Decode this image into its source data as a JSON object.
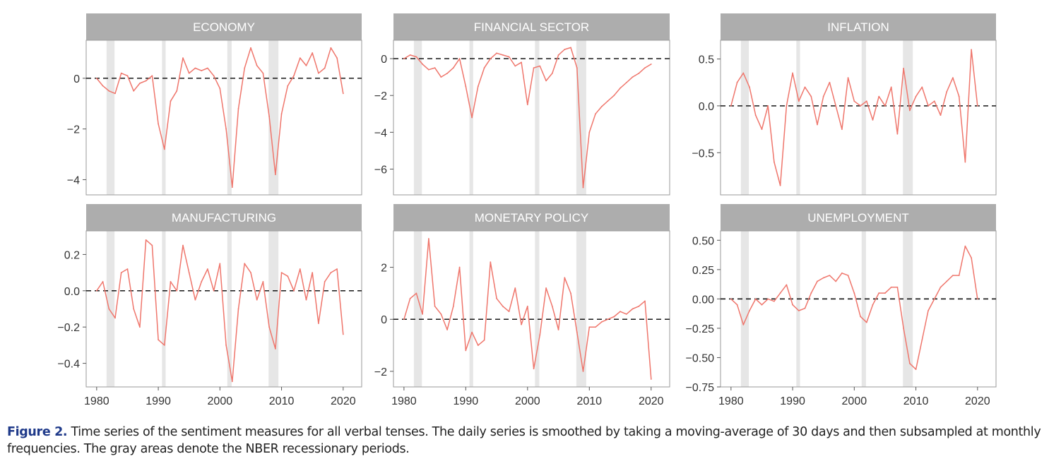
{
  "caption": {
    "label": "Figure 2.",
    "text": "Time series of the sentiment measures for all verbal tenses. The daily series is smoothed by taking a moving-average of 30 days and then subsampled at monthly frequencies. The gray areas denote the NBER recessionary periods."
  },
  "colors": {
    "line": "#ef766c",
    "strip": "#adadad",
    "recession": "#e6e6e6",
    "zero_line": "#000000"
  },
  "x_tick_labels": [
    "1980",
    "1990",
    "2000",
    "2010",
    "2020"
  ],
  "recessions": [
    [
      1981.6,
      1982.9
    ],
    [
      1990.6,
      1991.2
    ],
    [
      2001.2,
      2001.9
    ],
    [
      2007.9,
      2009.5
    ]
  ],
  "chart_data": [
    {
      "type": "line",
      "title": "ECONOMY",
      "xlim": [
        1978.3,
        2023.0
      ],
      "ylim": [
        -4.6,
        1.5
      ],
      "yticks": [
        0,
        -2,
        -4
      ],
      "ytick_labels": [
        "0",
        "−2",
        "−4"
      ],
      "x": [
        1980,
        1981,
        1982,
        1983,
        1984,
        1985,
        1986,
        1987,
        1988,
        1989,
        1990,
        1991,
        1992,
        1993,
        1994,
        1995,
        1996,
        1997,
        1998,
        1999,
        2000,
        2001,
        2002,
        2003,
        2004,
        2005,
        2006,
        2007,
        2008,
        2009,
        2010,
        2011,
        2012,
        2013,
        2014,
        2015,
        2016,
        2017,
        2018,
        2019,
        2020
      ],
      "values": [
        0.0,
        -0.3,
        -0.5,
        -0.6,
        0.2,
        0.1,
        -0.5,
        -0.2,
        -0.1,
        0.1,
        -1.8,
        -2.8,
        -0.9,
        -0.5,
        0.8,
        0.2,
        0.4,
        0.3,
        0.4,
        0.1,
        -0.4,
        -2.0,
        -4.3,
        -1.2,
        0.4,
        1.2,
        0.5,
        0.2,
        -1.5,
        -3.8,
        -1.4,
        -0.3,
        0.1,
        0.8,
        0.5,
        1.0,
        0.2,
        0.4,
        1.2,
        0.8,
        -0.6
      ]
    },
    {
      "type": "line",
      "title": "FINANCIAL SECTOR",
      "xlim": [
        1978.3,
        2023.0
      ],
      "ylim": [
        -7.4,
        1.0
      ],
      "yticks": [
        0,
        -2,
        -4,
        -6
      ],
      "ytick_labels": [
        "0",
        "−2",
        "−4",
        "−6"
      ],
      "x": [
        1980,
        1981,
        1982,
        1983,
        1984,
        1985,
        1986,
        1987,
        1988,
        1989,
        1990,
        1991,
        1992,
        1993,
        1994,
        1995,
        1996,
        1997,
        1998,
        1999,
        2000,
        2001,
        2002,
        2003,
        2004,
        2005,
        2006,
        2007,
        2008,
        2009,
        2010,
        2011,
        2012,
        2013,
        2014,
        2015,
        2016,
        2017,
        2018,
        2019,
        2020
      ],
      "values": [
        0.0,
        0.2,
        0.1,
        -0.3,
        -0.6,
        -0.5,
        -1.0,
        -0.8,
        -0.5,
        0.0,
        -1.5,
        -3.2,
        -1.5,
        -0.5,
        0.0,
        0.3,
        0.2,
        0.1,
        -0.4,
        -0.2,
        -2.5,
        -0.5,
        -0.4,
        -1.2,
        -0.8,
        0.2,
        0.5,
        0.6,
        -0.5,
        -7.0,
        -4.0,
        -3.0,
        -2.6,
        -2.3,
        -2.0,
        -1.6,
        -1.3,
        -1.0,
        -0.8,
        -0.5,
        -0.3
      ]
    },
    {
      "type": "line",
      "title": "INFLATION",
      "xlim": [
        1978.3,
        2023.0
      ],
      "ylim": [
        -0.95,
        0.7
      ],
      "yticks": [
        0.5,
        0.0,
        -0.5
      ],
      "ytick_labels": [
        "0.5",
        "0.0",
        "−0.5"
      ],
      "x": [
        1980,
        1981,
        1982,
        1983,
        1984,
        1985,
        1986,
        1987,
        1988,
        1989,
        1990,
        1991,
        1992,
        1993,
        1994,
        1995,
        1996,
        1997,
        1998,
        1999,
        2000,
        2001,
        2002,
        2003,
        2004,
        2005,
        2006,
        2007,
        2008,
        2009,
        2010,
        2011,
        2012,
        2013,
        2014,
        2015,
        2016,
        2017,
        2018,
        2019,
        2020
      ],
      "values": [
        0.0,
        0.25,
        0.35,
        0.2,
        -0.1,
        -0.25,
        0.0,
        -0.6,
        -0.85,
        0.0,
        0.35,
        0.05,
        0.2,
        0.1,
        -0.2,
        0.1,
        0.25,
        0.0,
        -0.25,
        0.3,
        0.05,
        0.0,
        0.05,
        -0.15,
        0.1,
        0.0,
        0.2,
        -0.3,
        0.4,
        -0.05,
        0.1,
        0.2,
        0.0,
        0.05,
        -0.1,
        0.15,
        0.3,
        0.1,
        -0.6,
        0.6,
        0.0
      ]
    },
    {
      "type": "line",
      "title": "MANUFACTURING",
      "xlim": [
        1978.3,
        2023.0
      ],
      "ylim": [
        -0.53,
        0.33
      ],
      "yticks": [
        0.2,
        0.0,
        -0.2,
        -0.4
      ],
      "ytick_labels": [
        "0.2",
        "0.0",
        "−0.2",
        "−0.4"
      ],
      "x": [
        1980,
        1981,
        1982,
        1983,
        1984,
        1985,
        1986,
        1987,
        1988,
        1989,
        1990,
        1991,
        1992,
        1993,
        1994,
        1995,
        1996,
        1997,
        1998,
        1999,
        2000,
        2001,
        2002,
        2003,
        2004,
        2005,
        2006,
        2007,
        2008,
        2009,
        2010,
        2011,
        2012,
        2013,
        2014,
        2015,
        2016,
        2017,
        2018,
        2019,
        2020
      ],
      "values": [
        0.0,
        0.05,
        -0.1,
        -0.15,
        0.1,
        0.12,
        -0.1,
        -0.2,
        0.28,
        0.25,
        -0.27,
        -0.3,
        0.05,
        0.0,
        0.25,
        0.1,
        -0.05,
        0.05,
        0.12,
        0.0,
        0.15,
        -0.3,
        -0.5,
        -0.1,
        0.15,
        0.1,
        -0.05,
        0.05,
        -0.2,
        -0.32,
        0.1,
        0.08,
        0.0,
        0.12,
        -0.05,
        0.1,
        -0.18,
        0.05,
        0.1,
        0.12,
        -0.24
      ]
    },
    {
      "type": "line",
      "title": "MONETARY POLICY",
      "xlim": [
        1978.3,
        2023.0
      ],
      "ylim": [
        -2.6,
        3.4
      ],
      "yticks": [
        2,
        0,
        -2
      ],
      "ytick_labels": [
        "2",
        "0",
        "−2"
      ],
      "x": [
        1980,
        1981,
        1982,
        1983,
        1984,
        1985,
        1986,
        1987,
        1988,
        1989,
        1990,
        1991,
        1992,
        1993,
        1994,
        1995,
        1996,
        1997,
        1998,
        1999,
        2000,
        2001,
        2002,
        2003,
        2004,
        2005,
        2006,
        2007,
        2008,
        2009,
        2010,
        2011,
        2012,
        2013,
        2014,
        2015,
        2016,
        2017,
        2018,
        2019,
        2020
      ],
      "values": [
        0.0,
        0.8,
        1.0,
        0.2,
        3.1,
        0.5,
        0.2,
        -0.4,
        0.5,
        2.0,
        -1.2,
        -0.5,
        -1.0,
        -0.8,
        2.2,
        0.8,
        0.5,
        0.3,
        1.2,
        -0.2,
        0.5,
        -1.9,
        -0.6,
        1.2,
        0.5,
        -0.4,
        1.6,
        1.0,
        -0.5,
        -2.0,
        -0.3,
        -0.3,
        -0.1,
        0.0,
        0.1,
        0.3,
        0.2,
        0.4,
        0.5,
        0.7,
        -2.3
      ]
    },
    {
      "type": "line",
      "title": "UNEMPLOYMENT",
      "xlim": [
        1978.3,
        2023.0
      ],
      "ylim": [
        -0.75,
        0.58
      ],
      "yticks": [
        0.5,
        0.25,
        0.0,
        -0.25,
        -0.5,
        -0.75
      ],
      "ytick_labels": [
        "0.50",
        "0.25",
        "0.00",
        "−0.25",
        "−0.50",
        "−0.75"
      ],
      "x": [
        1980,
        1981,
        1982,
        1983,
        1984,
        1985,
        1986,
        1987,
        1988,
        1989,
        1990,
        1991,
        1992,
        1993,
        1994,
        1995,
        1996,
        1997,
        1998,
        1999,
        2000,
        2001,
        2002,
        2003,
        2004,
        2005,
        2006,
        2007,
        2008,
        2009,
        2010,
        2011,
        2012,
        2013,
        2014,
        2015,
        2016,
        2017,
        2018,
        2019,
        2020
      ],
      "values": [
        0.0,
        -0.05,
        -0.22,
        -0.1,
        0.0,
        -0.05,
        0.0,
        -0.02,
        0.05,
        0.12,
        -0.05,
        -0.1,
        -0.08,
        0.05,
        0.15,
        0.18,
        0.2,
        0.15,
        0.22,
        0.2,
        0.05,
        -0.15,
        -0.2,
        -0.05,
        0.05,
        0.05,
        0.1,
        0.1,
        -0.25,
        -0.55,
        -0.6,
        -0.35,
        -0.1,
        0.0,
        0.1,
        0.15,
        0.2,
        0.2,
        0.45,
        0.35,
        0.0
      ]
    }
  ]
}
